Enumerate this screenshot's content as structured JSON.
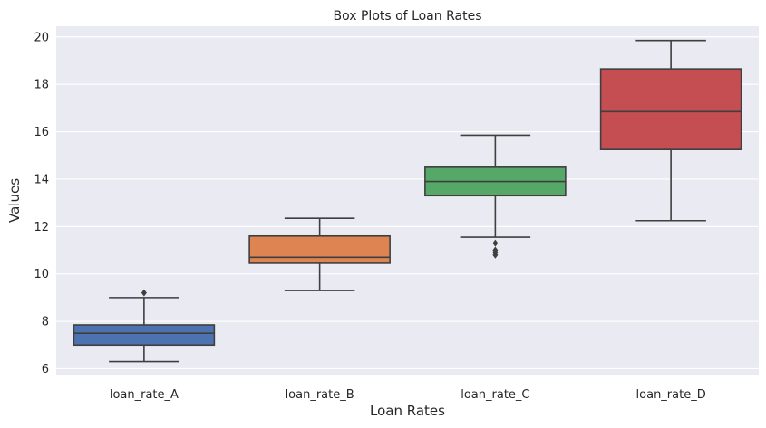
{
  "chart_data": {
    "type": "box",
    "title": "Box Plots of Loan Rates",
    "xlabel": "Loan Rates",
    "ylabel": "Values",
    "ylim": [
      5.75,
      20.45
    ],
    "yticks": [
      6,
      8,
      10,
      12,
      14,
      16,
      18,
      20
    ],
    "grid": true,
    "categories": [
      "loan_rate_A",
      "loan_rate_B",
      "loan_rate_C",
      "loan_rate_D"
    ],
    "series": [
      {
        "category": "loan_rate_A",
        "color": "#4c72b0",
        "whisker_low": 6.3,
        "q1": 7.0,
        "median": 7.5,
        "q3": 7.85,
        "whisker_high": 9.0,
        "outliers": [
          9.2
        ]
      },
      {
        "category": "loan_rate_B",
        "color": "#dd8452",
        "whisker_low": 9.3,
        "q1": 10.45,
        "median": 10.7,
        "q3": 11.6,
        "whisker_high": 12.35,
        "outliers": []
      },
      {
        "category": "loan_rate_C",
        "color": "#55a868",
        "whisker_low": 11.55,
        "q1": 13.3,
        "median": 13.9,
        "q3": 14.5,
        "whisker_high": 15.85,
        "outliers": [
          11.3,
          11.0,
          10.9,
          10.8
        ]
      },
      {
        "category": "loan_rate_D",
        "color": "#c44e52",
        "whisker_low": 12.25,
        "q1": 15.25,
        "median": 16.85,
        "q3": 18.65,
        "whisker_high": 19.85,
        "outliers": []
      }
    ]
  }
}
